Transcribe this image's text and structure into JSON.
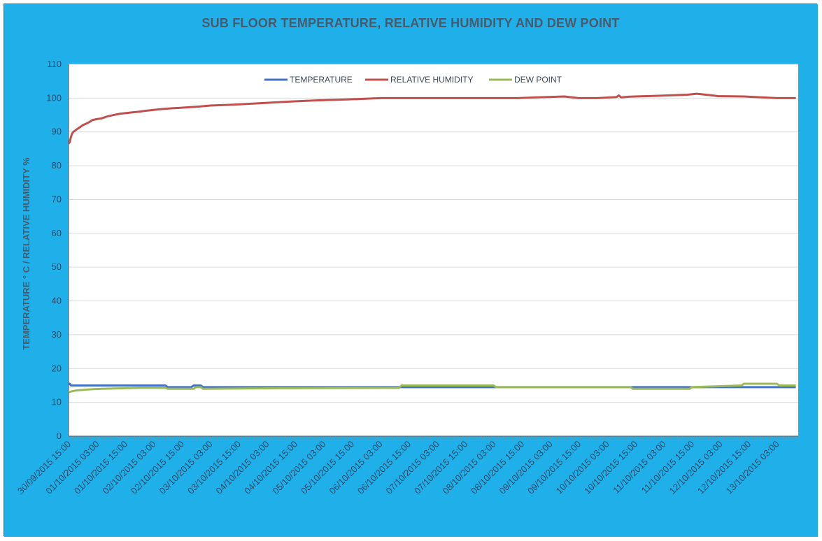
{
  "chart_data": {
    "type": "line",
    "title": "SUB FLOOR TEMPERATURE, RELATIVE HUMIDITY AND DEW POINT",
    "xlabel": "",
    "ylabel": "TEMPERATURE ° C / RELATIVE HUMIDITY %",
    "ylim": [
      0,
      110
    ],
    "yticks": [
      0,
      10,
      20,
      30,
      40,
      50,
      60,
      70,
      80,
      90,
      100,
      110
    ],
    "x_tick_labels": [
      "30/09/2015 15:00",
      "01/10/2015 03:00",
      "01/10/2015 15:00",
      "02/10/2015 03:00",
      "02/10/2015 15:00",
      "03/10/2015 03:00",
      "03/10/2015 15:00",
      "04/10/2015 03:00",
      "04/10/2015 15:00",
      "05/10/2015 03:00",
      "05/10/2015 15:00",
      "06/10/2015 03:00",
      "06/10/2015 15:00",
      "07/10/2015 03:00",
      "07/10/2015 15:00",
      "08/10/2015 03:00",
      "08/10/2015 15:00",
      "09/10/2015 03:00",
      "09/10/2015 15:00",
      "10/10/2015 03:00",
      "10/10/2015 15:00",
      "11/10/2015 03:00",
      "11/10/2015 15:00",
      "12/10/2015 03:00",
      "12/10/2015 15:00",
      "13/10/2015 03:00"
    ],
    "x_range_hours": [
      0,
      309
    ],
    "grid": true,
    "legend_position": "top",
    "series": [
      {
        "name": "TEMPERATURE",
        "color": "#4472c4",
        "x_hours": [
          0,
          0.5,
          1,
          41,
          42,
          52,
          53,
          56,
          57,
          308
        ],
        "values": [
          15.5,
          15.5,
          15,
          15,
          14.5,
          14.5,
          15,
          15,
          14.5,
          14.5
        ]
      },
      {
        "name": "RELATIVE HUMIDITY",
        "color": "#c0504d",
        "x_hours": [
          0,
          0.5,
          1,
          1.5,
          2,
          3,
          4,
          5,
          6,
          7,
          8,
          9,
          10,
          12,
          14,
          16,
          19,
          22,
          26,
          30,
          32,
          36,
          40,
          44,
          49,
          55,
          60,
          68,
          76,
          84,
          94,
          104,
          118,
          132,
          150,
          170,
          190,
          210,
          216,
          224,
          232,
          233,
          234,
          237,
          240,
          250,
          262,
          266,
          270,
          275,
          286,
          300,
          308
        ],
        "values": [
          86.5,
          87,
          88.5,
          89.5,
          90,
          90.5,
          91,
          91.5,
          92,
          92.3,
          92.6,
          93,
          93.5,
          93.8,
          94,
          94.5,
          95,
          95.4,
          95.7,
          96,
          96.2,
          96.5,
          96.8,
          97,
          97.2,
          97.5,
          97.8,
          98,
          98.3,
          98.6,
          99,
          99.3,
          99.6,
          100,
          100,
          100,
          100,
          100.5,
          100,
          100,
          100.3,
          100.8,
          100.2,
          100.4,
          100.5,
          100.7,
          101,
          101.3,
          101,
          100.6,
          100.5,
          100,
          100
        ]
      },
      {
        "name": "DEW POINT",
        "color": "#9bbb59",
        "x_hours": [
          0,
          1,
          3,
          8,
          14,
          20,
          30,
          41,
          42,
          53,
          54,
          56,
          57,
          90,
          140,
          141,
          180,
          181,
          220,
          221,
          238,
          239,
          263,
          264,
          285,
          286,
          300,
          301,
          308
        ],
        "values": [
          13,
          13.2,
          13.5,
          13.8,
          14,
          14.1,
          14.3,
          14.3,
          14,
          14,
          14.5,
          14.5,
          14,
          14.2,
          14.3,
          15,
          15,
          14.5,
          14.5,
          14.5,
          14.5,
          14,
          14,
          14.5,
          15,
          15.5,
          15.5,
          15,
          15
        ]
      }
    ]
  }
}
